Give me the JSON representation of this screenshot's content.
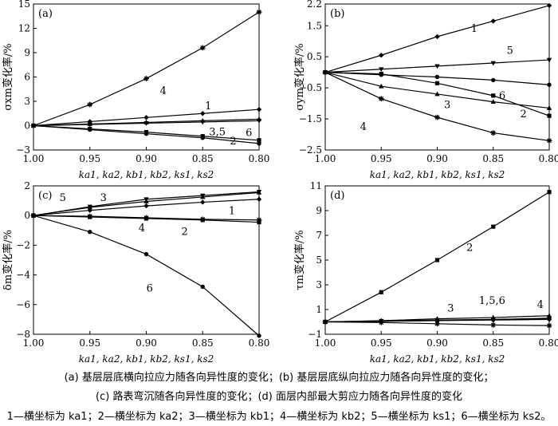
{
  "caption": {
    "line1": "(a)  基层层底横向拉应力随各向异性度的变化；(b)  基层层底纵向拉应力随各向异性度的变化；",
    "line2": "(c)  路表弯沉随各向异性度的变化；(d)  面层内部最大剪应力随各向异性度的变化",
    "line3": "1—横坐标为 ka1；2—横坐标为 ka2；3—横坐标为 kb1；4—横坐标为 kb2；5—横坐标为 ks1；6—横坐标为 ks2。"
  },
  "chart_data": [
    {
      "panel": "(a)",
      "type": "line",
      "ylabel": "σxm变化率/%",
      "xlabel": "ka1, ka2, kb1, kb2, ks1, ks2",
      "x": [
        1.0,
        0.95,
        0.9,
        0.85,
        0.8
      ],
      "xticks": [
        "1.00",
        "0.95",
        "0.90",
        "0.85",
        "0.80"
      ],
      "xlim": [
        1.0,
        0.8
      ],
      "ylim": [
        -3,
        15
      ],
      "yticks": [
        -3,
        0,
        3,
        6,
        9,
        12,
        15
      ],
      "series": [
        {
          "name": "1",
          "values": [
            0,
            0.5,
            1.0,
            1.5,
            2.0
          ]
        },
        {
          "name": "2",
          "values": [
            0,
            -0.4,
            -0.8,
            -1.3,
            -1.8
          ]
        },
        {
          "name": "3",
          "values": [
            0,
            0.2,
            0.4,
            0.6,
            0.8
          ]
        },
        {
          "name": "4",
          "values": [
            0,
            2.6,
            5.8,
            9.6,
            14.0
          ]
        },
        {
          "name": "5",
          "values": [
            0,
            0.15,
            0.3,
            0.45,
            0.6
          ]
        },
        {
          "name": "6",
          "values": [
            0,
            -0.5,
            -1.0,
            -1.5,
            -2.2
          ]
        }
      ],
      "annotations": [
        {
          "text": "4",
          "x": 0.885,
          "y": 4.3
        },
        {
          "text": "1",
          "x": 0.845,
          "y": 2.4
        },
        {
          "text": "3,5",
          "x": 0.837,
          "y": -0.8
        },
        {
          "text": "6",
          "x": 0.809,
          "y": -0.9
        },
        {
          "text": "2",
          "x": 0.823,
          "y": -1.9
        }
      ]
    },
    {
      "panel": "(b)",
      "type": "line",
      "ylabel": "σym变化率/%",
      "xlabel": "ka1, ka2, kb1, kb2, ks1, ks2",
      "x": [
        1.0,
        0.95,
        0.9,
        0.85,
        0.8
      ],
      "xticks": [
        "1.00",
        "0.95",
        "0.90",
        "0.85",
        "0.80"
      ],
      "xlim": [
        1.0,
        0.8
      ],
      "ylim": [
        -2.5,
        2.2
      ],
      "yticks": [
        -2.5,
        -1.5,
        -0.5,
        0.5,
        1.5,
        2.2
      ],
      "series": [
        {
          "name": "1",
          "values": [
            0,
            0.55,
            1.15,
            1.65,
            2.15
          ]
        },
        {
          "name": "2",
          "values": [
            0,
            -0.05,
            -0.35,
            -0.75,
            -1.4
          ]
        },
        {
          "name": "3",
          "values": [
            0,
            -0.45,
            -0.7,
            -0.95,
            -1.15
          ]
        },
        {
          "name": "4",
          "values": [
            0,
            -0.85,
            -1.45,
            -1.95,
            -2.2
          ]
        },
        {
          "name": "5",
          "values": [
            0,
            0.1,
            0.2,
            0.3,
            0.4
          ]
        },
        {
          "name": "6",
          "values": [
            0,
            -0.08,
            -0.15,
            -0.25,
            -0.4
          ]
        }
      ],
      "annotations": [
        {
          "text": "1",
          "x": 0.867,
          "y": 1.4
        },
        {
          "text": "5",
          "x": 0.835,
          "y": 0.7
        },
        {
          "text": "6",
          "x": 0.842,
          "y": -0.75
        },
        {
          "text": "3",
          "x": 0.891,
          "y": -1.05
        },
        {
          "text": "2",
          "x": 0.823,
          "y": -1.35
        },
        {
          "text": "4",
          "x": 0.966,
          "y": -1.75
        }
      ]
    },
    {
      "panel": "(c)",
      "type": "line",
      "ylabel": "δm变化率/%",
      "xlabel": "ka1, ka2, kb1, kb2, ks1, ks2",
      "x": [
        1.0,
        0.95,
        0.9,
        0.85,
        0.8
      ],
      "xticks": [
        "1.00",
        "0.95",
        "0.90",
        "0.85",
        "0.80"
      ],
      "xlim": [
        1.0,
        0.8
      ],
      "ylim": [
        -8,
        2
      ],
      "yticks": [
        -8,
        -6,
        -4,
        -2,
        0,
        2
      ],
      "series": [
        {
          "name": "1",
          "values": [
            0,
            0.35,
            0.65,
            0.9,
            1.1
          ]
        },
        {
          "name": "2",
          "values": [
            0,
            -0.1,
            -0.2,
            -0.3,
            -0.45
          ]
        },
        {
          "name": "3",
          "values": [
            0,
            0.55,
            0.95,
            1.25,
            1.55
          ]
        },
        {
          "name": "4",
          "values": [
            0,
            -0.05,
            -0.15,
            -0.25,
            -0.3
          ]
        },
        {
          "name": "5",
          "values": [
            0,
            0.6,
            1.1,
            1.35,
            1.6
          ]
        },
        {
          "name": "6",
          "values": [
            0,
            -1.1,
            -2.6,
            -4.8,
            -8.1
          ]
        }
      ],
      "annotations": [
        {
          "text": "5",
          "x": 0.974,
          "y": 1.2
        },
        {
          "text": "3",
          "x": 0.938,
          "y": 1.2
        },
        {
          "text": "1",
          "x": 0.824,
          "y": 0.3
        },
        {
          "text": "4",
          "x": 0.904,
          "y": -0.85
        },
        {
          "text": "2",
          "x": 0.866,
          "y": -1.1
        },
        {
          "text": "6",
          "x": 0.897,
          "y": -4.9
        }
      ]
    },
    {
      "panel": "(d)",
      "type": "line",
      "ylabel": "τm变化率/%",
      "xlabel": "ka1, ka2, kb1, kb2, ks1, ks2",
      "x": [
        1.0,
        0.95,
        0.9,
        0.85,
        0.8
      ],
      "xticks": [
        "1.00",
        "0.95",
        "0.90",
        "0.85",
        "0.80"
      ],
      "xlim": [
        1.0,
        0.8
      ],
      "ylim": [
        -1,
        11
      ],
      "yticks": [
        -1,
        1,
        3,
        5,
        7,
        9,
        11
      ],
      "series": [
        {
          "name": "1",
          "values": [
            0,
            0.05,
            0.1,
            0.15,
            0.2
          ]
        },
        {
          "name": "2",
          "values": [
            0,
            2.4,
            5.0,
            7.7,
            10.5
          ]
        },
        {
          "name": "3",
          "values": [
            0,
            0.1,
            0.25,
            0.35,
            0.5
          ]
        },
        {
          "name": "4",
          "values": [
            0,
            -0.05,
            -0.15,
            -0.25,
            -0.3
          ]
        },
        {
          "name": "5",
          "values": [
            0,
            0.08,
            0.15,
            0.2,
            0.3
          ]
        },
        {
          "name": "6",
          "values": [
            0,
            0.06,
            0.12,
            0.18,
            0.25
          ]
        }
      ],
      "annotations": [
        {
          "text": "2",
          "x": 0.871,
          "y": 6.0
        },
        {
          "text": "3",
          "x": 0.888,
          "y": 1.1
        },
        {
          "text": "1,5,6",
          "x": 0.851,
          "y": 1.7
        },
        {
          "text": "4",
          "x": 0.808,
          "y": 1.4
        }
      ]
    }
  ]
}
